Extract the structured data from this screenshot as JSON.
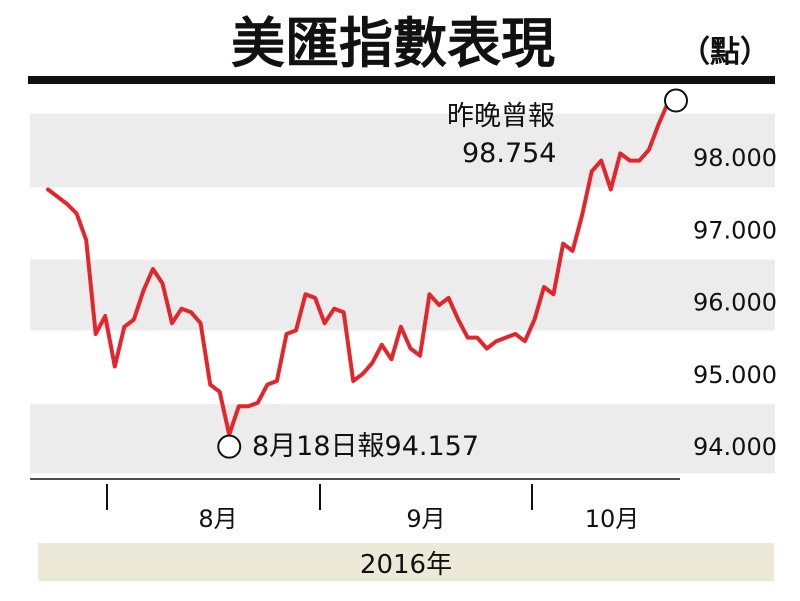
{
  "chart_data": {
    "type": "line",
    "title": "美匯指數表現",
    "unit": "（點）",
    "year_label": "2016年",
    "x_tick_labels": [
      "8月",
      "9月",
      "10月"
    ],
    "y_tick_labels": [
      "98.000",
      "97.000",
      "96.000",
      "95.000",
      "94.000"
    ],
    "y_ticks": [
      98,
      97,
      96,
      95,
      94
    ],
    "ylim": [
      93.6,
      98.8
    ],
    "grid_bands": true,
    "series": [
      {
        "color": "#e3262b",
        "values": [
          97.55,
          97.45,
          97.35,
          97.22,
          96.85,
          95.55,
          95.8,
          95.1,
          95.65,
          95.75,
          96.15,
          96.45,
          96.25,
          95.7,
          95.9,
          95.85,
          95.7,
          94.85,
          94.75,
          94.157,
          94.55,
          94.55,
          94.6,
          94.85,
          94.9,
          95.55,
          95.6,
          96.1,
          96.05,
          95.7,
          95.9,
          95.85,
          94.9,
          95.0,
          95.15,
          95.4,
          95.2,
          95.65,
          95.35,
          95.25,
          96.1,
          95.95,
          96.05,
          95.75,
          95.5,
          95.5,
          95.35,
          95.45,
          95.5,
          95.55,
          95.45,
          95.75,
          96.2,
          96.1,
          96.8,
          96.7,
          97.2,
          97.8,
          97.95,
          97.55,
          98.05,
          97.95,
          97.95,
          98.1,
          98.45,
          98.754
        ]
      }
    ],
    "annotations": {
      "high": {
        "label_line1": "昨晚曾報",
        "label_line2": "98.754",
        "value": 98.754
      },
      "low": {
        "label": "8月18日報94.157",
        "value": 94.157
      }
    }
  }
}
